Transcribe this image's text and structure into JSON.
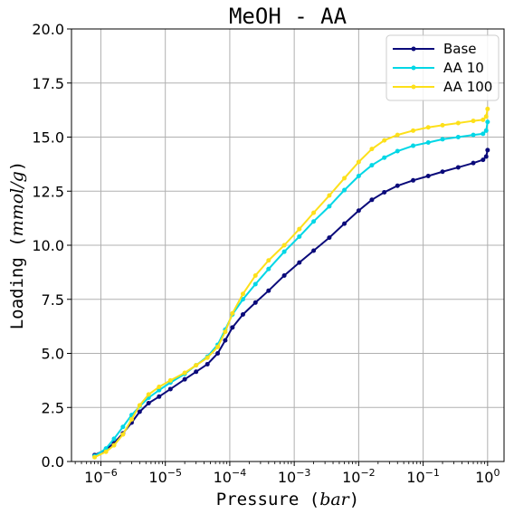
{
  "chart_data": {
    "type": "line",
    "title": "MeOH - AA",
    "xlabel": "Pressure (bar)",
    "xlabel_plain": "Pressure ",
    "xlabel_unit": "bar",
    "ylabel": "Loading (mmol/g)",
    "ylabel_plain": "Loading ",
    "ylabel_unit": "mmol/g",
    "x_scale": "log",
    "xlim": [
      3.5e-07,
      1.8
    ],
    "ylim": [
      0,
      20
    ],
    "grid": true,
    "legend_position": "top-right",
    "x_ticks": [
      {
        "value": 1e-06,
        "base": "10",
        "exp": "−6"
      },
      {
        "value": 1e-05,
        "base": "10",
        "exp": "−5"
      },
      {
        "value": 0.0001,
        "base": "10",
        "exp": "−4"
      },
      {
        "value": 0.001,
        "base": "10",
        "exp": "−3"
      },
      {
        "value": 0.01,
        "base": "10",
        "exp": "−2"
      },
      {
        "value": 0.1,
        "base": "10",
        "exp": "−1"
      },
      {
        "value": 1,
        "base": "10",
        "exp": "0"
      }
    ],
    "y_ticks": [
      {
        "value": 0,
        "label": "0.0"
      },
      {
        "value": 2.5,
        "label": "2.5"
      },
      {
        "value": 5,
        "label": "5.0"
      },
      {
        "value": 7.5,
        "label": "7.5"
      },
      {
        "value": 10,
        "label": "10.0"
      },
      {
        "value": 12.5,
        "label": "12.5"
      },
      {
        "value": 15,
        "label": "15.0"
      },
      {
        "value": 17.5,
        "label": "17.5"
      },
      {
        "value": 20,
        "label": "20.0"
      }
    ],
    "series": [
      {
        "name": "Base",
        "color": "#0a0a7a",
        "points": [
          [
            8e-07,
            0.3
          ],
          [
            1.2e-06,
            0.55
          ],
          [
            1.6e-06,
            0.85
          ],
          [
            2.2e-06,
            1.3
          ],
          [
            3e-06,
            1.8
          ],
          [
            4e-06,
            2.3
          ],
          [
            5.5e-06,
            2.7
          ],
          [
            8e-06,
            3.0
          ],
          [
            1.2e-05,
            3.35
          ],
          [
            2e-05,
            3.8
          ],
          [
            3e-05,
            4.15
          ],
          [
            4.5e-05,
            4.5
          ],
          [
            6.5e-05,
            5.0
          ],
          [
            8.5e-05,
            5.6
          ],
          [
            0.00011,
            6.2
          ],
          [
            0.00016,
            6.8
          ],
          [
            0.00025,
            7.35
          ],
          [
            0.0004,
            7.9
          ],
          [
            0.0007,
            8.6
          ],
          [
            0.0012,
            9.2
          ],
          [
            0.002,
            9.75
          ],
          [
            0.0035,
            10.35
          ],
          [
            0.006,
            11.0
          ],
          [
            0.01,
            11.6
          ],
          [
            0.016,
            12.1
          ],
          [
            0.025,
            12.45
          ],
          [
            0.04,
            12.75
          ],
          [
            0.07,
            13.0
          ],
          [
            0.12,
            13.2
          ],
          [
            0.2,
            13.4
          ],
          [
            0.35,
            13.6
          ],
          [
            0.6,
            13.8
          ],
          [
            0.85,
            13.95
          ],
          [
            0.95,
            14.1
          ],
          [
            1.0,
            14.4
          ]
        ]
      },
      {
        "name": "AA 10",
        "color": "#00d7e6",
        "points": [
          [
            8e-07,
            0.25
          ],
          [
            1.2e-06,
            0.6
          ],
          [
            1.6e-06,
            1.05
          ],
          [
            2.2e-06,
            1.6
          ],
          [
            3e-06,
            2.15
          ],
          [
            4e-06,
            2.55
          ],
          [
            5.5e-06,
            2.95
          ],
          [
            8e-06,
            3.3
          ],
          [
            1.2e-05,
            3.65
          ],
          [
            2e-05,
            4.05
          ],
          [
            3e-05,
            4.45
          ],
          [
            4.5e-05,
            4.85
          ],
          [
            6.5e-05,
            5.4
          ],
          [
            8.5e-05,
            6.1
          ],
          [
            0.00011,
            6.8
          ],
          [
            0.00016,
            7.5
          ],
          [
            0.00025,
            8.2
          ],
          [
            0.0004,
            8.9
          ],
          [
            0.0007,
            9.7
          ],
          [
            0.0012,
            10.4
          ],
          [
            0.002,
            11.1
          ],
          [
            0.0035,
            11.8
          ],
          [
            0.006,
            12.55
          ],
          [
            0.01,
            13.2
          ],
          [
            0.016,
            13.7
          ],
          [
            0.025,
            14.05
          ],
          [
            0.04,
            14.35
          ],
          [
            0.07,
            14.6
          ],
          [
            0.12,
            14.75
          ],
          [
            0.2,
            14.9
          ],
          [
            0.35,
            15.0
          ],
          [
            0.6,
            15.1
          ],
          [
            0.85,
            15.15
          ],
          [
            0.95,
            15.3
          ],
          [
            1.0,
            15.7
          ]
        ]
      },
      {
        "name": "AA 100",
        "color": "#fde01a",
        "points": [
          [
            8e-07,
            0.2
          ],
          [
            1.2e-06,
            0.45
          ],
          [
            1.6e-06,
            0.75
          ],
          [
            2.2e-06,
            1.25
          ],
          [
            3e-06,
            1.95
          ],
          [
            4e-06,
            2.6
          ],
          [
            5.5e-06,
            3.1
          ],
          [
            8e-06,
            3.45
          ],
          [
            1.2e-05,
            3.75
          ],
          [
            2e-05,
            4.1
          ],
          [
            3e-05,
            4.45
          ],
          [
            4.5e-05,
            4.8
          ],
          [
            6.5e-05,
            5.3
          ],
          [
            8.5e-05,
            6.0
          ],
          [
            0.00011,
            6.85
          ],
          [
            0.00016,
            7.75
          ],
          [
            0.00025,
            8.6
          ],
          [
            0.0004,
            9.3
          ],
          [
            0.0007,
            10.0
          ],
          [
            0.0012,
            10.75
          ],
          [
            0.002,
            11.5
          ],
          [
            0.0035,
            12.3
          ],
          [
            0.006,
            13.1
          ],
          [
            0.01,
            13.85
          ],
          [
            0.016,
            14.45
          ],
          [
            0.025,
            14.85
          ],
          [
            0.04,
            15.1
          ],
          [
            0.07,
            15.3
          ],
          [
            0.12,
            15.45
          ],
          [
            0.2,
            15.55
          ],
          [
            0.35,
            15.65
          ],
          [
            0.6,
            15.75
          ],
          [
            0.85,
            15.8
          ],
          [
            0.95,
            15.95
          ],
          [
            1.0,
            16.3
          ]
        ]
      }
    ]
  }
}
